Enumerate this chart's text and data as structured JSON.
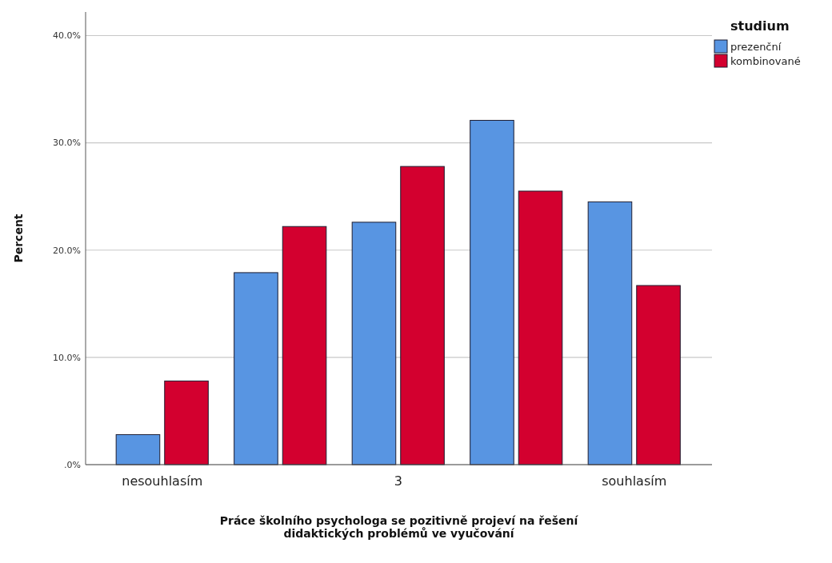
{
  "chart_data": {
    "type": "bar",
    "xlabel": "Práce školního psychologa se pozitivně projeví na řešení\ndidaktických problémů ve vyučování",
    "ylabel": "Percent",
    "legend_title": "studium",
    "categories": [
      "nesouhlasím",
      null,
      "3",
      null,
      "souhlasím"
    ],
    "series": [
      {
        "name": "prezenční",
        "color": "#5895e2",
        "values": [
          2.8,
          17.9,
          22.6,
          32.1,
          24.5
        ]
      },
      {
        "name": "kombinované",
        "color": "#d3002f",
        "values": [
          7.8,
          22.2,
          27.8,
          25.5,
          16.7
        ]
      }
    ],
    "ylim": [
      0,
      42.2
    ],
    "yticks": [
      {
        "value": 0,
        "label": ".0%"
      },
      {
        "value": 10,
        "label": "10.0%"
      },
      {
        "value": 20,
        "label": "20.0%"
      },
      {
        "value": 30,
        "label": "30.0%"
      },
      {
        "value": 40,
        "label": "40.0%"
      }
    ],
    "grid": "y",
    "legend": "top right"
  }
}
